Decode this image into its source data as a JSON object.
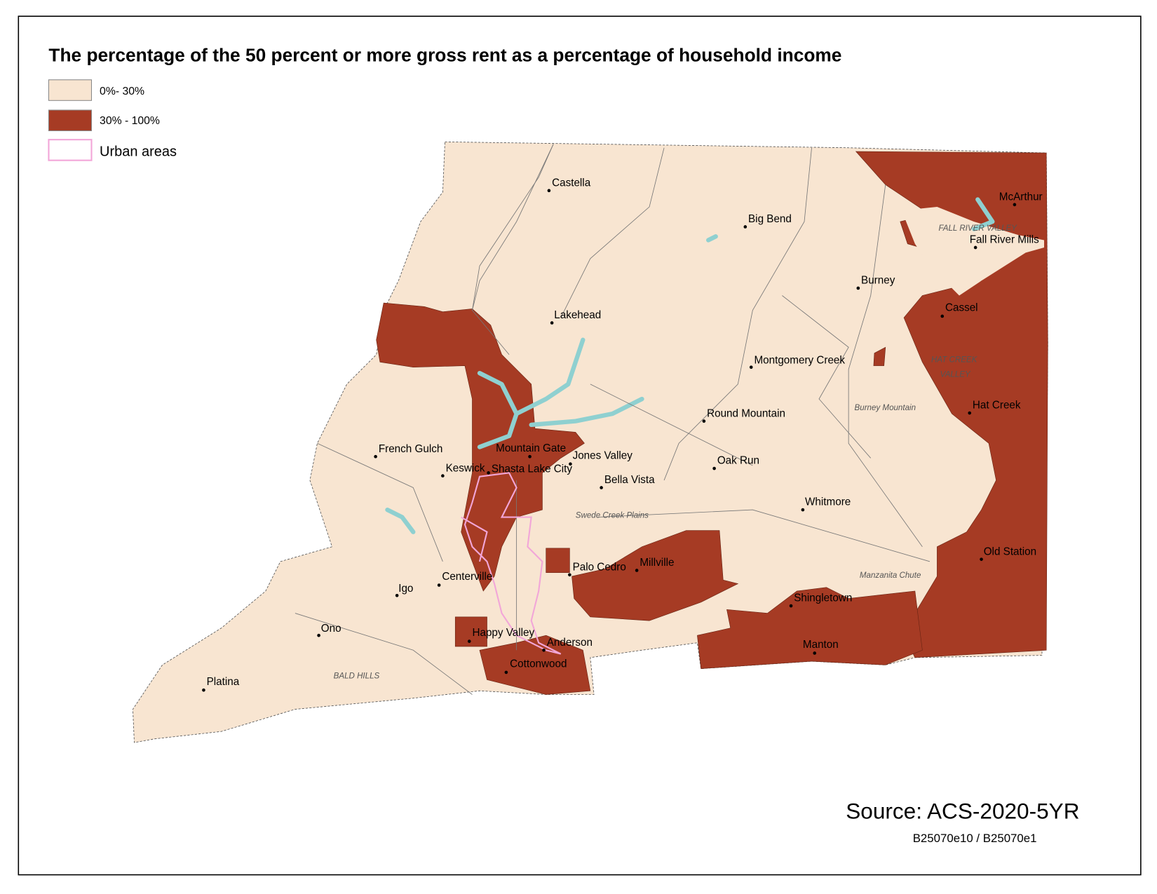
{
  "title": "The percentage of the 50 percent or more gross rent as a percentage of household income",
  "legend": [
    {
      "label": "0%- 30%",
      "color": "#f8e5d1"
    },
    {
      "label": "30% - 100%",
      "color": "#a63b24"
    },
    {
      "label": "Urban areas",
      "color": "#f2a6d8"
    }
  ],
  "places": [
    "Castella",
    "Big Bend",
    "McArthur",
    "Fall River Mills",
    "Burney",
    "Cassel",
    "Lakehead",
    "Montgomery Creek",
    "Hat Creek",
    "Round Mountain",
    "French Gulch",
    "Mountain Gate",
    "Jones Valley",
    "Keswick",
    "Shasta Lake City",
    "Oak Run",
    "Bella Vista",
    "Whitmore",
    "Old Station",
    "Palo Cedro",
    "Millville",
    "Centerville",
    "Igo",
    "Shingletown",
    "Ono",
    "Happy Valley",
    "Anderson",
    "Manton",
    "Cottonwood",
    "Platina"
  ],
  "map_labels": [
    "FALL RIVER VALLEY",
    "HAT CREEK",
    "VALLEY",
    "Burney Mountain",
    "Swede Creek Plains",
    "Manzanita Chute",
    "BALD HILLS"
  ],
  "source": "Source: ACS-2020-5YR",
  "note": "B25070e10 / B25070e1"
}
